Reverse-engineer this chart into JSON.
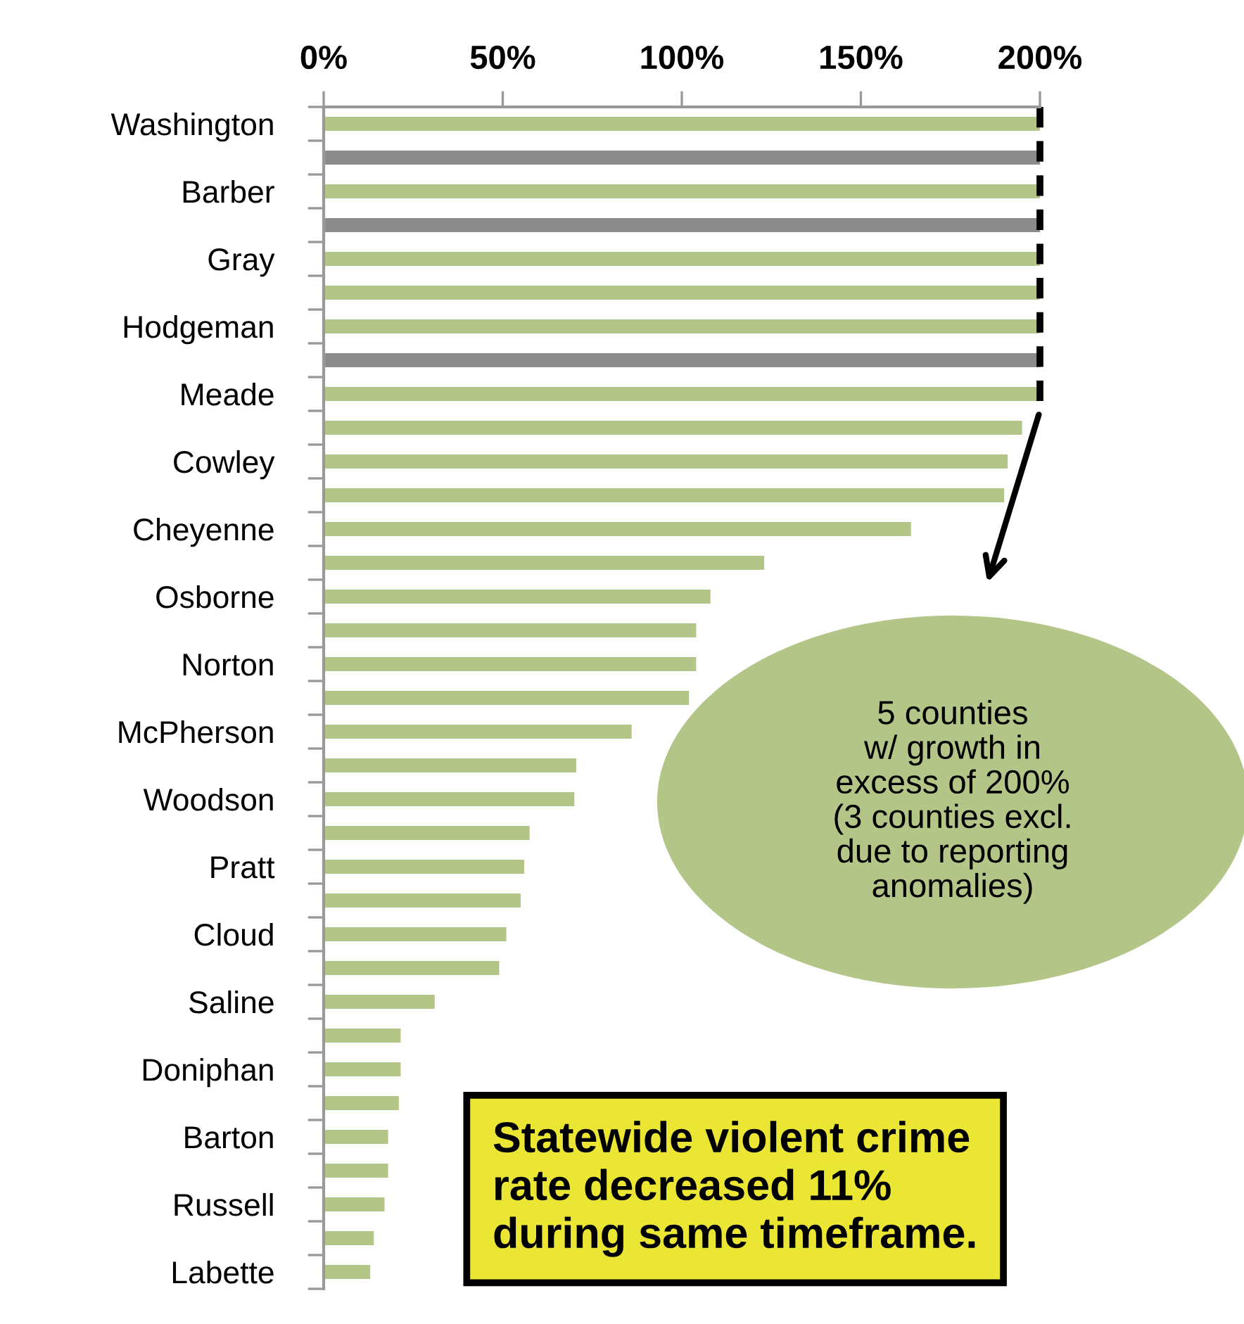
{
  "chart_data": {
    "type": "bar",
    "orientation": "horizontal",
    "categories": [
      "Washington",
      null,
      "Barber",
      null,
      "Gray",
      null,
      "Hodgeman",
      null,
      "Meade",
      null,
      "Cowley",
      null,
      "Cheyenne",
      null,
      "Osborne",
      null,
      "Norton",
      null,
      "McPherson",
      null,
      "Woodson",
      null,
      "Pratt",
      null,
      "Cloud",
      null,
      "Saline",
      null,
      "Doniphan",
      null,
      "Barton",
      null,
      "Russell",
      null,
      "Labette"
    ],
    "values": [
      200,
      200,
      200,
      200,
      200,
      200,
      200,
      200,
      200,
      195,
      191,
      190,
      164,
      123,
      108,
      104,
      104,
      102,
      86,
      70.5,
      70,
      57.5,
      56,
      55,
      51,
      49,
      31,
      21.5,
      21.5,
      21,
      18,
      18,
      17,
      14,
      13
    ],
    "colors": [
      "#b3c587",
      "#8c8c8c",
      "#b3c587",
      "#8c8c8c",
      "#b3c587",
      "#b3c587",
      "#b3c587",
      "#8c8c8c",
      "#b3c587",
      "#b3c587",
      "#b3c587",
      "#b3c587",
      "#b3c587",
      "#b3c587",
      "#b3c587",
      "#b3c587",
      "#b3c587",
      "#b3c587",
      "#b3c587",
      "#b3c587",
      "#b3c587",
      "#b3c587",
      "#b3c587",
      "#b3c587",
      "#b3c587",
      "#b3c587",
      "#b3c587",
      "#b3c587",
      "#b3c587",
      "#b3c587",
      "#b3c587",
      "#b3c587",
      "#b3c587",
      "#b3c587",
      "#b3c587"
    ],
    "xlim": [
      0,
      200
    ],
    "xticks": [
      {
        "value": 0,
        "label": "0%"
      },
      {
        "value": 50,
        "label": "50%"
      },
      {
        "value": 100,
        "label": "100%"
      },
      {
        "value": 150,
        "label": "150%"
      },
      {
        "value": 200,
        "label": "200%"
      }
    ],
    "ref_lines": [
      {
        "axis": "x",
        "value": 200,
        "color": "#000000",
        "line_style": "dashed"
      }
    ],
    "annotations": [
      "5 counties\nw/ growth in\nexcess of 200%\n(3 counties excl.\ndue to reporting\nanomalies)",
      "Statewide violent crime\nrate decreased 11%\nduring same timeframe."
    ],
    "grid": false
  }
}
